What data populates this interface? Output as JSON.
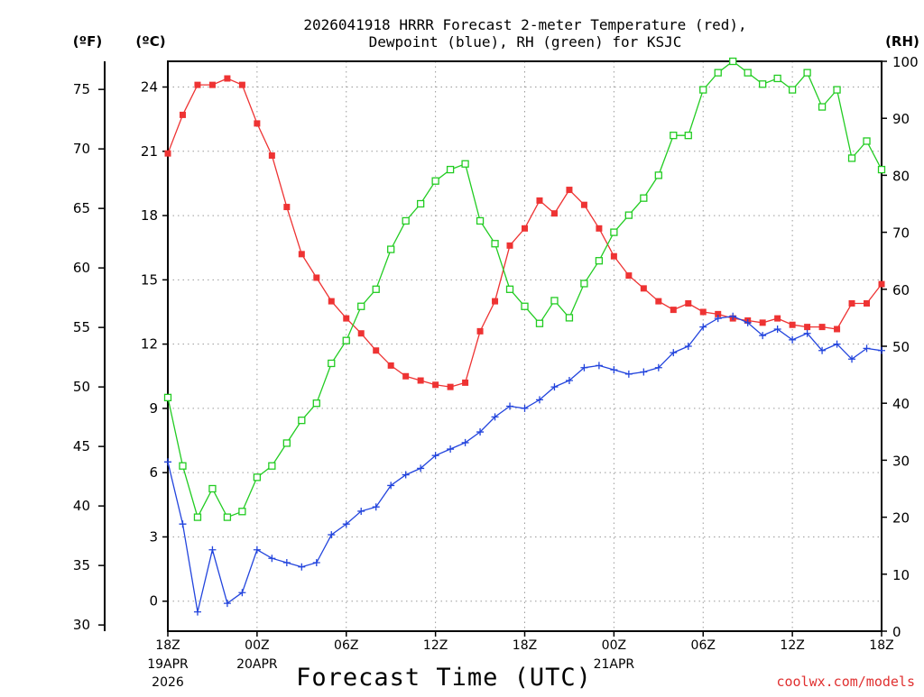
{
  "chart_data": {
    "type": "line",
    "title_line1": "2026041918 HRRR Forecast 2-meter Temperature (red),",
    "title_line2": "Dewpoint (blue), RH (green) for KSJC",
    "xlabel": "Forecast Time (UTC)",
    "watermark": "coolwx.com/models",
    "left_outer_unit": "(ºF)",
    "left_inner_unit": "(ºC)",
    "right_unit": "(RH)",
    "x_range": [
      0,
      48
    ],
    "temp_c_range": [
      -1.4,
      25.2
    ],
    "rh_range": [
      0,
      100
    ],
    "grid": true,
    "x_ticks": [
      {
        "h": 0,
        "label": "18Z",
        "date1": "19APR",
        "date2": "2026"
      },
      {
        "h": 6,
        "label": "00Z",
        "date1": "20APR",
        "date2": ""
      },
      {
        "h": 12,
        "label": "06Z",
        "date1": "",
        "date2": ""
      },
      {
        "h": 18,
        "label": "12Z",
        "date1": "",
        "date2": ""
      },
      {
        "h": 24,
        "label": "18Z",
        "date1": "",
        "date2": ""
      },
      {
        "h": 30,
        "label": "00Z",
        "date1": "21APR",
        "date2": ""
      },
      {
        "h": 36,
        "label": "06Z",
        "date1": "",
        "date2": ""
      },
      {
        "h": 42,
        "label": "12Z",
        "date1": "",
        "date2": ""
      },
      {
        "h": 48,
        "label": "18Z",
        "date1": "",
        "date2": ""
      }
    ],
    "c_ticks": [
      {
        "v": 0,
        "label": "0"
      },
      {
        "v": 3,
        "label": "3"
      },
      {
        "v": 6,
        "label": "6"
      },
      {
        "v": 9,
        "label": "9"
      },
      {
        "v": 12,
        "label": "12"
      },
      {
        "v": 15,
        "label": "15"
      },
      {
        "v": 18,
        "label": "18"
      },
      {
        "v": 21,
        "label": "21"
      },
      {
        "v": 24,
        "label": "24"
      }
    ],
    "f_ticks": [
      {
        "v": 30,
        "label": "30"
      },
      {
        "v": 35,
        "label": "35"
      },
      {
        "v": 40,
        "label": "40"
      },
      {
        "v": 45,
        "label": "45"
      },
      {
        "v": 50,
        "label": "50"
      },
      {
        "v": 55,
        "label": "55"
      },
      {
        "v": 60,
        "label": "60"
      },
      {
        "v": 65,
        "label": "65"
      },
      {
        "v": 70,
        "label": "70"
      },
      {
        "v": 75,
        "label": "75"
      }
    ],
    "rh_ticks": [
      {
        "v": 0,
        "label": "0"
      },
      {
        "v": 10,
        "label": "10"
      },
      {
        "v": 20,
        "label": "20"
      },
      {
        "v": 30,
        "label": "30"
      },
      {
        "v": 40,
        "label": "40"
      },
      {
        "v": 50,
        "label": "50"
      },
      {
        "v": 60,
        "label": "60"
      },
      {
        "v": 70,
        "label": "70"
      },
      {
        "v": 80,
        "label": "80"
      },
      {
        "v": 90,
        "label": "90"
      },
      {
        "v": 100,
        "label": "100"
      }
    ],
    "series": [
      {
        "name": "2-meter Temperature",
        "axis": "temp",
        "color": "#ee3333",
        "marker": "filled-square",
        "values": [
          20.9,
          22.7,
          24.1,
          24.1,
          24.4,
          24.1,
          22.3,
          20.8,
          18.4,
          16.2,
          15.1,
          14.0,
          13.2,
          12.5,
          11.7,
          11.0,
          10.5,
          10.3,
          10.1,
          10.0,
          10.2,
          12.6,
          14.0,
          16.6,
          17.4,
          18.7,
          18.1,
          19.2,
          18.5,
          17.4,
          16.1,
          15.2,
          14.6,
          14.0,
          13.6,
          13.9,
          13.5,
          13.4,
          13.2,
          13.1,
          13.0,
          13.2,
          12.9,
          12.8,
          12.8,
          12.7,
          13.9,
          13.9,
          14.8
        ]
      },
      {
        "name": "Dewpoint",
        "axis": "temp",
        "color": "#2244dd",
        "marker": "plus",
        "values": [
          6.5,
          3.6,
          -0.5,
          2.4,
          -0.1,
          0.4,
          2.4,
          2.0,
          1.8,
          1.6,
          1.8,
          3.1,
          3.6,
          4.2,
          4.4,
          5.4,
          5.9,
          6.2,
          6.8,
          7.1,
          7.4,
          7.9,
          8.6,
          9.1,
          9.0,
          9.4,
          10.0,
          10.3,
          10.9,
          11.0,
          10.8,
          10.6,
          10.7,
          10.9,
          11.6,
          11.9,
          12.8,
          13.2,
          13.3,
          13.0,
          12.4,
          12.7,
          12.2,
          12.5,
          11.7,
          12.0,
          11.3,
          11.8,
          11.7
        ]
      },
      {
        "name": "RH",
        "axis": "rh",
        "color": "#22cc22",
        "marker": "open-square",
        "values": [
          41,
          29,
          20,
          25,
          20,
          21,
          27,
          29,
          33,
          37,
          40,
          47,
          51,
          57,
          60,
          67,
          72,
          75,
          79,
          81,
          82,
          72,
          68,
          60,
          57,
          54,
          58,
          55,
          61,
          65,
          70,
          73,
          76,
          80,
          87,
          87,
          95,
          98,
          100,
          98,
          96,
          97,
          95,
          98,
          92,
          95,
          83,
          86,
          81
        ]
      }
    ]
  }
}
